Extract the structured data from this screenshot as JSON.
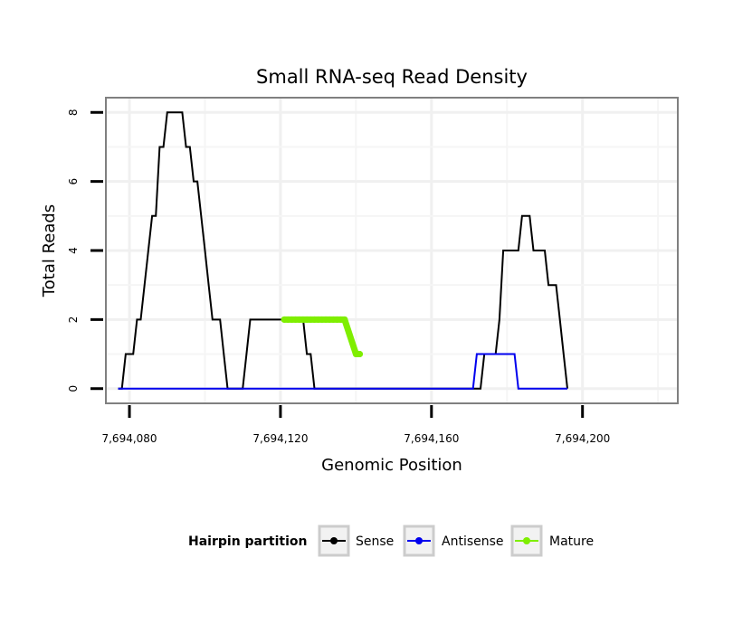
{
  "chart_data": {
    "type": "line",
    "title": "Small RNA-seq Read Density",
    "xlabel": "Genomic Position",
    "ylabel": "Total Reads",
    "xlim": [
      7694074,
      7694225
    ],
    "ylim": [
      -0.4,
      8.4
    ],
    "x_ticks": [
      7694080,
      7694120,
      7694160,
      7694200
    ],
    "x_tick_labels": [
      "7,694,080",
      "7,694,120",
      "7,694,160",
      "7,694,200"
    ],
    "y_ticks": [
      0,
      2,
      4,
      6,
      8
    ],
    "y_tick_labels": [
      "0",
      "2",
      "4",
      "6",
      "8"
    ],
    "grid": true,
    "legend": {
      "title": "Hairpin partition",
      "position": "bottom",
      "entries": [
        "Sense",
        "Antisense",
        "Mature"
      ]
    },
    "series": [
      {
        "name": "Sense",
        "color": "#000000",
        "points": [
          [
            7694077,
            0
          ],
          [
            7694078,
            0
          ],
          [
            7694079,
            1
          ],
          [
            7694080,
            1
          ],
          [
            7694081,
            1
          ],
          [
            7694082,
            2
          ],
          [
            7694083,
            2
          ],
          [
            7694084,
            3
          ],
          [
            7694085,
            4
          ],
          [
            7694086,
            5
          ],
          [
            7694087,
            5
          ],
          [
            7694088,
            7
          ],
          [
            7694089,
            7
          ],
          [
            7694090,
            8
          ],
          [
            7694091,
            8
          ],
          [
            7694092,
            8
          ],
          [
            7694093,
            8
          ],
          [
            7694094,
            8
          ],
          [
            7694095,
            7
          ],
          [
            7694096,
            7
          ],
          [
            7694097,
            6
          ],
          [
            7694098,
            6
          ],
          [
            7694099,
            5
          ],
          [
            7694100,
            4
          ],
          [
            7694101,
            3
          ],
          [
            7694102,
            2
          ],
          [
            7694103,
            2
          ],
          [
            7694104,
            2
          ],
          [
            7694105,
            1
          ],
          [
            7694106,
            0
          ],
          [
            7694107,
            0
          ],
          [
            7694108,
            0
          ],
          [
            7694109,
            0
          ],
          [
            7694110,
            0
          ],
          [
            7694111,
            1
          ],
          [
            7694112,
            2
          ],
          [
            7694113,
            2
          ],
          [
            7694114,
            2
          ],
          [
            7694115,
            2
          ],
          [
            7694116,
            2
          ],
          [
            7694117,
            2
          ],
          [
            7694118,
            2
          ],
          [
            7694119,
            2
          ],
          [
            7694120,
            2
          ],
          [
            7694121,
            2
          ],
          [
            7694122,
            2
          ],
          [
            7694123,
            2
          ],
          [
            7694124,
            2
          ],
          [
            7694125,
            2
          ],
          [
            7694126,
            2
          ],
          [
            7694127,
            1
          ],
          [
            7694128,
            1
          ],
          [
            7694129,
            0
          ],
          [
            7694130,
            0
          ],
          [
            7694140,
            0
          ],
          [
            7694150,
            0
          ],
          [
            7694160,
            0
          ],
          [
            7694170,
            0
          ],
          [
            7694172,
            0
          ],
          [
            7694173,
            0
          ],
          [
            7694174,
            1
          ],
          [
            7694175,
            1
          ],
          [
            7694176,
            1
          ],
          [
            7694177,
            1
          ],
          [
            7694178,
            2
          ],
          [
            7694179,
            4
          ],
          [
            7694180,
            4
          ],
          [
            7694181,
            4
          ],
          [
            7694182,
            4
          ],
          [
            7694183,
            4
          ],
          [
            7694184,
            5
          ],
          [
            7694185,
            5
          ],
          [
            7694186,
            5
          ],
          [
            7694187,
            4
          ],
          [
            7694188,
            4
          ],
          [
            7694189,
            4
          ],
          [
            7694190,
            4
          ],
          [
            7694191,
            3
          ],
          [
            7694192,
            3
          ],
          [
            7694193,
            3
          ],
          [
            7694194,
            2
          ],
          [
            7694195,
            1
          ],
          [
            7694196,
            0
          ]
        ]
      },
      {
        "name": "Antisense",
        "color": "#0000ee",
        "points": [
          [
            7694077,
            0
          ],
          [
            7694100,
            0
          ],
          [
            7694130,
            0
          ],
          [
            7694160,
            0
          ],
          [
            7694171,
            0
          ],
          [
            7694172,
            1
          ],
          [
            7694173,
            1
          ],
          [
            7694174,
            1
          ],
          [
            7694175,
            1
          ],
          [
            7694176,
            1
          ],
          [
            7694177,
            1
          ],
          [
            7694178,
            1
          ],
          [
            7694179,
            1
          ],
          [
            7694180,
            1
          ],
          [
            7694181,
            1
          ],
          [
            7694182,
            1
          ],
          [
            7694183,
            0
          ],
          [
            7694190,
            0
          ],
          [
            7694196,
            0
          ]
        ]
      },
      {
        "name": "Mature",
        "color": "#7fee00",
        "points": [
          [
            7694121,
            2
          ],
          [
            7694122,
            2
          ],
          [
            7694123,
            2
          ],
          [
            7694124,
            2
          ],
          [
            7694125,
            2
          ],
          [
            7694126,
            2
          ],
          [
            7694127,
            2
          ],
          [
            7694128,
            2
          ],
          [
            7694129,
            2
          ],
          [
            7694130,
            2
          ],
          [
            7694131,
            2
          ],
          [
            7694132,
            2
          ],
          [
            7694133,
            2
          ],
          [
            7694134,
            2
          ],
          [
            7694135,
            2
          ],
          [
            7694136,
            2
          ],
          [
            7694137,
            2
          ],
          [
            7694140,
            1
          ],
          [
            7694141,
            1
          ]
        ]
      }
    ]
  }
}
